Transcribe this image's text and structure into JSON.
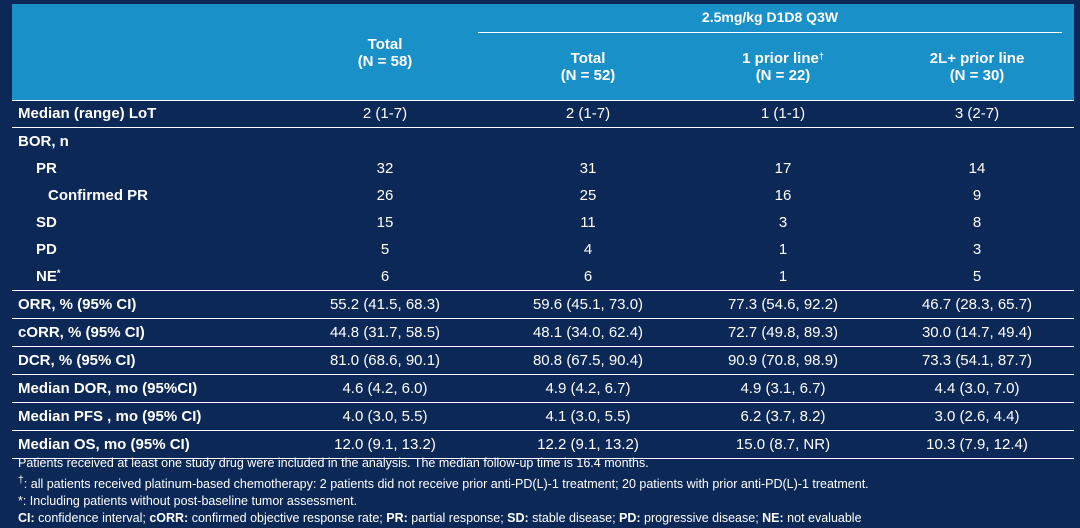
{
  "header": {
    "group_title": "2.5mg/kg D1D8 Q3W",
    "columns": [
      {
        "title": "Total",
        "n": "(N = 58)",
        "sup": ""
      },
      {
        "title": "Total",
        "n": "(N = 52)",
        "sup": ""
      },
      {
        "title": "1 prior line",
        "n": "(N = 22)",
        "sup": "†"
      },
      {
        "title": "2L+ prior line",
        "n": "(N = 30)",
        "sup": ""
      }
    ]
  },
  "rows": [
    {
      "label": "Median (range) LoT",
      "sup": "",
      "values": [
        "2 (1-7)",
        "2 (1-7)",
        "1 (1-1)",
        "3 (2-7)"
      ]
    },
    {
      "label": "BOR, n",
      "sup": "",
      "values": [
        "",
        "",
        "",
        ""
      ]
    },
    {
      "label": "PR",
      "sup": "",
      "values": [
        "32",
        "31",
        "17",
        "14"
      ]
    },
    {
      "label": "Confirmed PR",
      "sup": "",
      "values": [
        "26",
        "25",
        "16",
        "9"
      ]
    },
    {
      "label": "SD",
      "sup": "",
      "values": [
        "15",
        "11",
        "3",
        "8"
      ]
    },
    {
      "label": "PD",
      "sup": "",
      "values": [
        "5",
        "4",
        "1",
        "3"
      ]
    },
    {
      "label": "NE",
      "sup": "*",
      "values": [
        "6",
        "6",
        "1",
        "5"
      ]
    },
    {
      "label": "ORR, % (95% CI)",
      "sup": "",
      "values": [
        "55.2 (41.5, 68.3)",
        "59.6 (45.1, 73.0)",
        "77.3 (54.6, 92.2)",
        "46.7 (28.3, 65.7)"
      ]
    },
    {
      "label": "cORR, % (95% CI)",
      "sup": "",
      "values": [
        "44.8 (31.7, 58.5)",
        "48.1 (34.0, 62.4)",
        "72.7 (49.8, 89.3)",
        "30.0 (14.7, 49.4)"
      ]
    },
    {
      "label": "DCR, % (95% CI)",
      "sup": "",
      "values": [
        "81.0 (68.6, 90.1)",
        "80.8 (67.5, 90.4)",
        "90.9 (70.8, 98.9)",
        "73.3 (54.1, 87.7)"
      ]
    },
    {
      "label": "Median DOR, mo (95%CI)",
      "sup": "",
      "values": [
        "4.6 (4.2, 6.0)",
        "4.9 (4.2, 6.7)",
        "4.9 (3.1, 6.7)",
        "4.4 (3.0, 7.0)"
      ]
    },
    {
      "label": "Median PFS , mo (95% CI)",
      "sup": "",
      "values": [
        "4.0 (3.0, 5.5)",
        "4.1 (3.0, 5.5)",
        "6.2 (3.7, 8.2)",
        "3.0 (2.6, 4.4)"
      ]
    },
    {
      "label": "Median OS, mo (95% CI)",
      "sup": "",
      "values": [
        "12.0 (9.1, 13.2)",
        "12.2 (9.1, 13.2)",
        "15.0 (8.7, NR)",
        "10.3 (7.9, 12.4)"
      ]
    }
  ],
  "footnotes": {
    "line1": "Patients received at least one study drug were included in the analysis. The median follow-up time is 16.4 months.",
    "line2_mark": "†",
    "line2": ": all patients received platinum-based chemotherapy: 2 patients did not receive prior anti-PD(L)-1 treatment; 20 patients with prior anti-PD(L)-1 treatment.",
    "line3": "*: Including patients without post-baseline tumor assessment.",
    "abbrev": [
      {
        "term": "CI:",
        "def": " confidence interval; "
      },
      {
        "term": "cORR:",
        "def": " confirmed objective response rate; "
      },
      {
        "term": "PR:",
        "def": " partial response; "
      },
      {
        "term": "SD:",
        "def": " stable disease; "
      },
      {
        "term": "PD:",
        "def": " progressive disease; "
      },
      {
        "term": "NE:",
        "def": " not evaluable"
      }
    ]
  },
  "colors": {
    "background": "#0b2857",
    "header": "#1a90c9",
    "text": "#ffffff"
  }
}
